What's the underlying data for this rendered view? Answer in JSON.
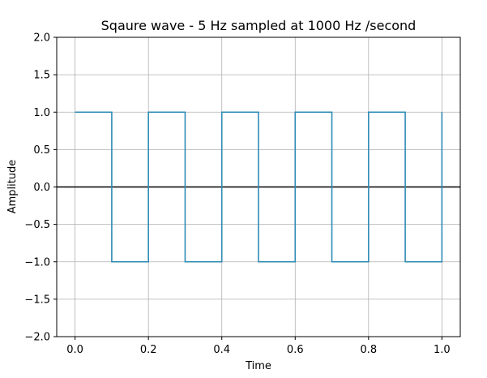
{
  "chart_data": {
    "type": "line",
    "title": "Sqaure wave - 5 Hz sampled at 1000 Hz /second",
    "xlabel": "Time",
    "ylabel": "Amplitude",
    "xlim": [
      -0.05,
      1.05
    ],
    "ylim": [
      -2.0,
      2.0
    ],
    "x_ticks": [
      0.0,
      0.2,
      0.4,
      0.6,
      0.8,
      1.0
    ],
    "x_tick_labels": [
      "0.0",
      "0.2",
      "0.4",
      "0.6",
      "0.8",
      "1.0"
    ],
    "y_ticks": [
      -2.0,
      -1.5,
      -1.0,
      -0.5,
      0.0,
      0.5,
      1.0,
      1.5,
      2.0
    ],
    "y_tick_labels": [
      "−2.0",
      "−1.5",
      "−1.0",
      "−0.5",
      "0.0",
      "0.5",
      "1.0",
      "1.5",
      "2.0"
    ],
    "grid": true,
    "reference_line": {
      "y": 0.0,
      "color": "#000000"
    },
    "series": [
      {
        "color": "#2e8bb5",
        "x": [
          0.0,
          0.1,
          0.1,
          0.2,
          0.2,
          0.3,
          0.3,
          0.4,
          0.4,
          0.5,
          0.5,
          0.6,
          0.6,
          0.7,
          0.7,
          0.8,
          0.8,
          0.9,
          0.9,
          1.0,
          1.0
        ],
        "y": [
          1,
          1,
          -1,
          -1,
          1,
          1,
          -1,
          -1,
          1,
          1,
          -1,
          -1,
          1,
          1,
          -1,
          -1,
          1,
          1,
          -1,
          -1,
          1
        ]
      }
    ],
    "colors": {
      "grid": "#b0b0b0",
      "axes": "#000000"
    }
  }
}
